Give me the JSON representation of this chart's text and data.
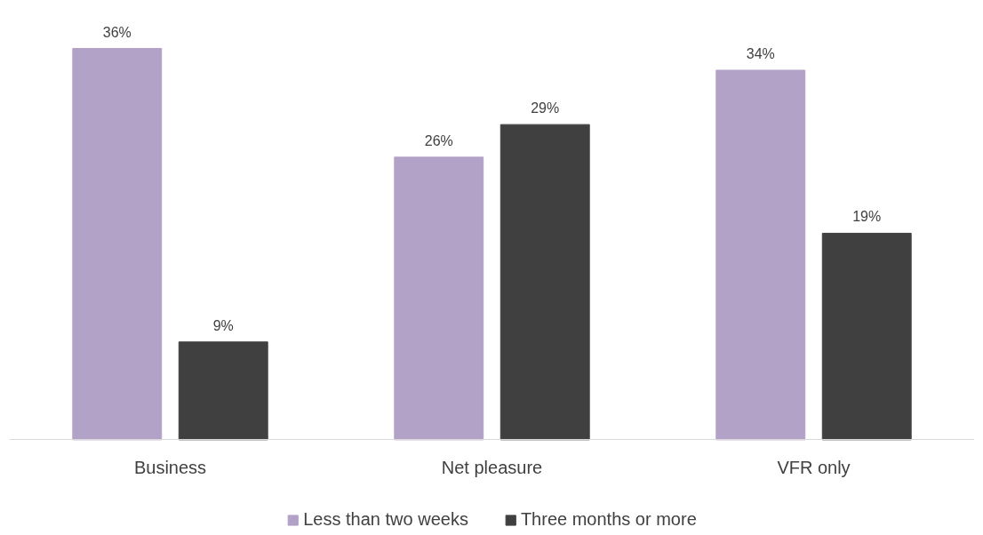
{
  "chart_data": {
    "type": "bar",
    "categories": [
      "Business",
      "Net pleasure",
      "VFR only"
    ],
    "series": [
      {
        "name": "Less than two weeks",
        "color": "#b3a2c7",
        "values": [
          36,
          26,
          34
        ],
        "value_labels": [
          "36%",
          "26%",
          "34%"
        ]
      },
      {
        "name": "Three months or more",
        "color": "#404040",
        "values": [
          9,
          29,
          19
        ],
        "value_labels": [
          "9%",
          "29%",
          "19%"
        ]
      }
    ],
    "legend": "bottom",
    "grid": false
  }
}
